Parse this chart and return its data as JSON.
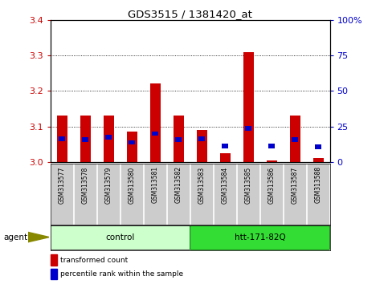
{
  "title": "GDS3515 / 1381420_at",
  "samples": [
    "GSM313577",
    "GSM313578",
    "GSM313579",
    "GSM313580",
    "GSM313581",
    "GSM313582",
    "GSM313583",
    "GSM313584",
    "GSM313585",
    "GSM313586",
    "GSM313587",
    "GSM313588"
  ],
  "red_values": [
    3.13,
    3.13,
    3.13,
    3.085,
    3.22,
    3.13,
    3.09,
    3.025,
    3.31,
    3.005,
    3.13,
    3.01
  ],
  "blue_values": [
    3.065,
    3.062,
    3.07,
    3.055,
    3.08,
    3.063,
    3.065,
    3.045,
    3.095,
    3.045,
    3.063,
    3.042
  ],
  "ymin": 3.0,
  "ymax": 3.4,
  "yticks_left": [
    3.0,
    3.1,
    3.2,
    3.3,
    3.4
  ],
  "yticks_right": [
    0,
    25,
    50,
    75,
    100
  ],
  "group1": {
    "label": "control",
    "start": 0,
    "end": 5
  },
  "group2": {
    "label": "htt-171-82Q",
    "start": 6,
    "end": 11
  },
  "agent_label": "agent",
  "legend_items": [
    {
      "color": "#cc0000",
      "label": "transformed count"
    },
    {
      "color": "#0000cc",
      "label": "percentile rank within the sample"
    }
  ],
  "bar_width": 0.45,
  "bar_color": "#cc0000",
  "blue_color": "#0000cc",
  "grid_color": "#000000",
  "label_bg_color": "#cccccc",
  "group1_color": "#ccffcc",
  "group2_color": "#33dd33",
  "plot_bg": "#ffffff",
  "left_tick_color": "#cc0000",
  "right_tick_color": "#0000cc"
}
